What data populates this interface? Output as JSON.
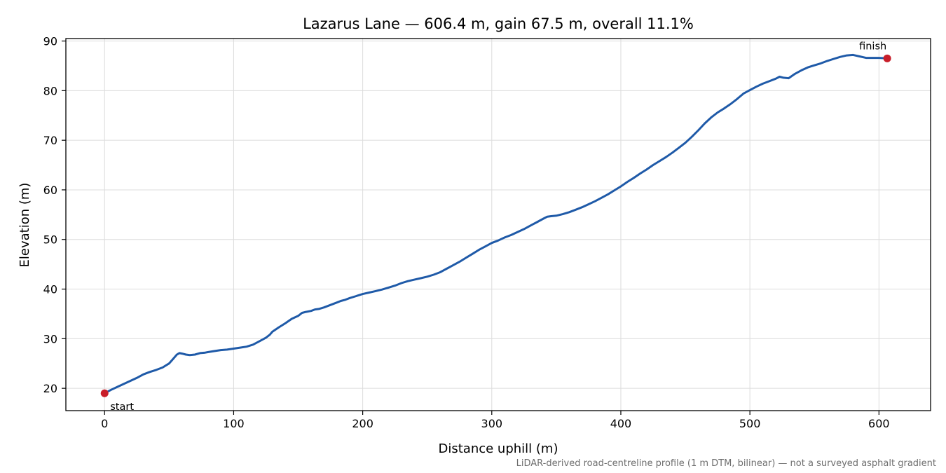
{
  "chart_data": {
    "type": "line",
    "title": "Lazarus Lane — 606.4 m, gain 67.5 m, overall 11.1%",
    "xlabel": "Distance uphill (m)",
    "ylabel": "Elevation (m)",
    "xlim": [
      -30,
      640
    ],
    "ylim": [
      15.5,
      90.5
    ],
    "xticks": [
      0,
      100,
      200,
      300,
      400,
      500,
      600
    ],
    "yticks": [
      20,
      30,
      40,
      50,
      60,
      70,
      80,
      90
    ],
    "grid": true,
    "line_color": "#1f5aa8",
    "marker_color": "#c81e2a",
    "series": [
      {
        "x": [
          0,
          5,
          10,
          15,
          20,
          25,
          30,
          35,
          40,
          45,
          50,
          53,
          56,
          58,
          60,
          63,
          66,
          70,
          74,
          78,
          80,
          85,
          90,
          95,
          100,
          105,
          110,
          115,
          120,
          125,
          128,
          130,
          135,
          140,
          145,
          150,
          153,
          156,
          160,
          163,
          166,
          170,
          175,
          180,
          183,
          186,
          190,
          195,
          200,
          205,
          210,
          215,
          220,
          225,
          230,
          235,
          240,
          245,
          250,
          255,
          260,
          265,
          270,
          275,
          280,
          285,
          290,
          295,
          300,
          305,
          310,
          315,
          320,
          325,
          330,
          335,
          340,
          343,
          346,
          350,
          355,
          360,
          365,
          370,
          375,
          380,
          385,
          390,
          395,
          400,
          405,
          410,
          415,
          420,
          425,
          430,
          435,
          440,
          445,
          450,
          455,
          460,
          465,
          470,
          475,
          480,
          485,
          490,
          495,
          500,
          505,
          510,
          515,
          520,
          523,
          526,
          530,
          535,
          540,
          545,
          550,
          555,
          560,
          565,
          570,
          575,
          580,
          585,
          590,
          595,
          600,
          606.4
        ],
        "y": [
          19.0,
          19.7,
          20.3,
          20.9,
          21.5,
          22.1,
          22.8,
          23.3,
          23.7,
          24.2,
          25.0,
          25.9,
          26.8,
          27.1,
          27.0,
          26.8,
          26.7,
          26.8,
          27.1,
          27.2,
          27.3,
          27.5,
          27.7,
          27.8,
          28.0,
          28.2,
          28.4,
          28.8,
          29.5,
          30.2,
          30.8,
          31.4,
          32.3,
          33.1,
          34.0,
          34.6,
          35.2,
          35.4,
          35.6,
          35.9,
          36.0,
          36.3,
          36.8,
          37.3,
          37.6,
          37.8,
          38.2,
          38.6,
          39.0,
          39.3,
          39.6,
          39.9,
          40.3,
          40.7,
          41.2,
          41.6,
          41.9,
          42.2,
          42.5,
          42.9,
          43.4,
          44.1,
          44.8,
          45.5,
          46.3,
          47.1,
          47.9,
          48.6,
          49.3,
          49.8,
          50.4,
          50.9,
          51.5,
          52.1,
          52.8,
          53.5,
          54.2,
          54.6,
          54.7,
          54.8,
          55.1,
          55.5,
          56.0,
          56.5,
          57.1,
          57.7,
          58.4,
          59.1,
          59.9,
          60.7,
          61.6,
          62.4,
          63.3,
          64.1,
          65.0,
          65.8,
          66.6,
          67.5,
          68.5,
          69.5,
          70.7,
          72.0,
          73.4,
          74.6,
          75.6,
          76.4,
          77.3,
          78.3,
          79.4,
          80.1,
          80.8,
          81.4,
          81.9,
          82.4,
          82.8,
          82.6,
          82.5,
          83.4,
          84.1,
          84.7,
          85.1,
          85.5,
          86.0,
          86.4,
          86.8,
          87.1,
          87.2,
          86.9,
          86.6,
          86.6,
          86.6,
          86.5
        ]
      }
    ],
    "markers": [
      {
        "label": "start",
        "x": 0,
        "y": 19.0
      },
      {
        "label": "finish",
        "x": 606.4,
        "y": 86.5
      }
    ],
    "footnote": "LiDAR-derived road-centreline profile (1 m DTM, bilinear) — not a surveyed asphalt gradient"
  }
}
